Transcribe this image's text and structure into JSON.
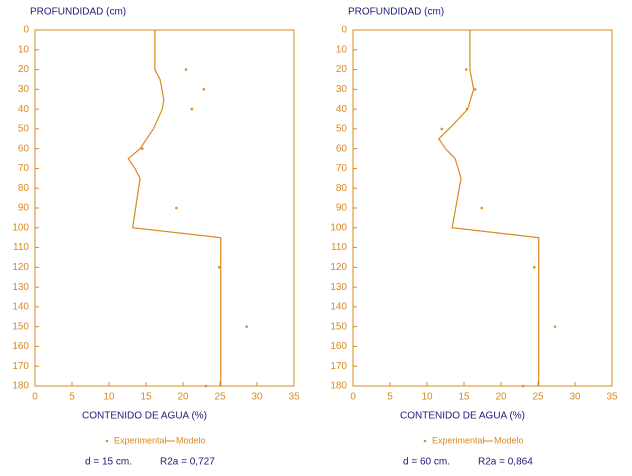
{
  "chart_data": [
    {
      "type": "line",
      "y_label": "PROFUNDIDAD (cm)",
      "x_label": "CONTENIDO DE AGUA (%)",
      "xlim": [
        0,
        35
      ],
      "xticks": [
        0,
        5,
        10,
        15,
        20,
        25,
        30,
        35
      ],
      "ylim": [
        0,
        180
      ],
      "yticks": [
        0,
        10,
        20,
        30,
        40,
        50,
        60,
        70,
        80,
        90,
        100,
        110,
        120,
        130,
        140,
        150,
        160,
        170,
        180
      ],
      "y_inverted": true,
      "series": [
        {
          "name": "Experimental",
          "type": "scatter",
          "color": "#e08a2a",
          "x": [
            20.4,
            22.8,
            21.2,
            14.5,
            19.1,
            24.9,
            28.6,
            23.1
          ],
          "y": [
            20,
            30,
            40,
            60,
            90,
            120,
            150,
            180
          ]
        },
        {
          "name": "Modelo",
          "type": "line",
          "color": "#d9891f",
          "x": [
            16.2,
            16.2,
            16.9,
            17.4,
            17.2,
            16.0,
            14.2,
            12.6,
            13.5,
            14.2,
            13.2,
            25.1,
            25.1
          ],
          "y": [
            0,
            20,
            25,
            35,
            40,
            50,
            60,
            65,
            70,
            75,
            100,
            105,
            180
          ]
        }
      ],
      "annotations": [
        "d = 15 cm.",
        "R2a = 0,727"
      ]
    },
    {
      "type": "line",
      "y_label": "PROFUNDIDAD (cm)",
      "x_label": "CONTENIDO DE AGUA (%)",
      "xlim": [
        0,
        35
      ],
      "xticks": [
        0,
        5,
        10,
        15,
        20,
        25,
        30,
        35
      ],
      "ylim": [
        0,
        180
      ],
      "yticks": [
        0,
        10,
        20,
        30,
        40,
        50,
        60,
        70,
        80,
        90,
        100,
        110,
        120,
        130,
        140,
        150,
        160,
        170,
        180
      ],
      "y_inverted": true,
      "series": [
        {
          "name": "Experimental",
          "type": "scatter",
          "color": "#e08a2a",
          "x": [
            15.3,
            16.5,
            15.4,
            12.0,
            17.4,
            24.5,
            27.3,
            23.0
          ],
          "y": [
            20,
            30,
            40,
            50,
            90,
            120,
            150,
            180
          ]
        },
        {
          "name": "Modelo",
          "type": "line",
          "color": "#d9891f",
          "x": [
            15.8,
            15.8,
            16.3,
            15.5,
            13.5,
            11.6,
            12.5,
            13.8,
            14.6,
            13.4,
            25.1,
            25.1
          ],
          "y": [
            0,
            20,
            30,
            40,
            48,
            55,
            60,
            65,
            75,
            100,
            105,
            180
          ]
        }
      ],
      "annotations": [
        "d = 60 cm.",
        "R2a = 0,864"
      ]
    }
  ]
}
